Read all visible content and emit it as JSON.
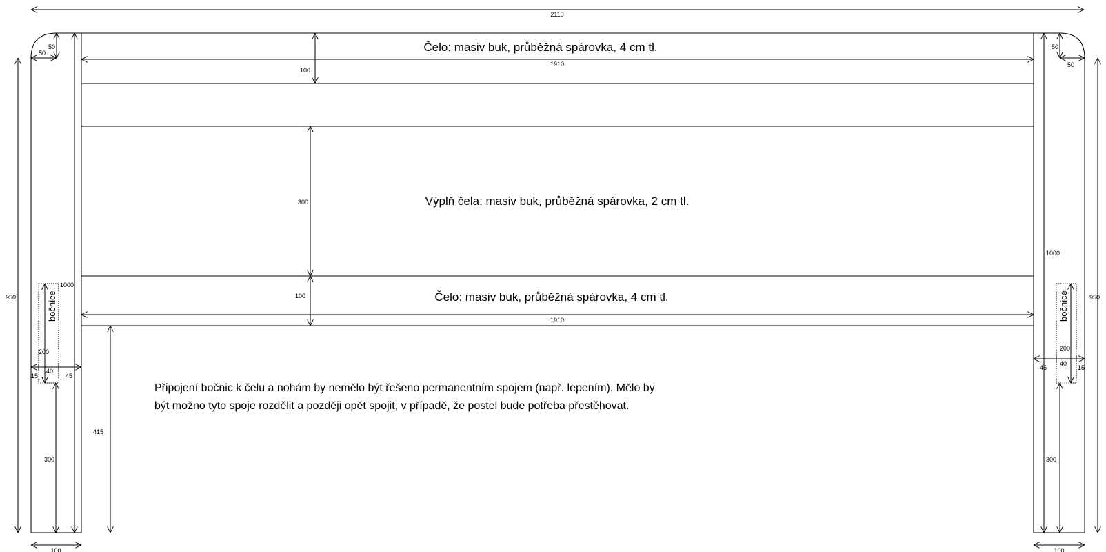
{
  "labels": {
    "top_rail": "Čelo: masiv buk, průběžná spárovka, 4 cm tl.",
    "infill": "Výplň čela: masiv buk, průběžná spárovka, 2 cm tl.",
    "bottom_rail": "Čelo: masiv buk, průběžná spárovka, 4 cm tl.",
    "left_side_rail": "bočnice",
    "right_side_rail": "bočnice"
  },
  "note": {
    "line1": "Připojení bočnic k čelu a nohám by nemělo být řešeno permanentním spojem (např. lepením). Mělo by",
    "line2": "být možno tyto spoje rozdělit a později opět spojit, v případě, že postel bude potřeba přestěhovat."
  },
  "dimensions": {
    "overall_width": "2110",
    "top_rail_width": "1910",
    "bottom_rail_width": "1910",
    "top_rail_height": "100",
    "infill_height": "300",
    "bottom_rail_height": "100",
    "rail_clearance": "415",
    "left": {
      "corner_radius_v": "50",
      "corner_radius_h": "50",
      "post_height": "950",
      "headboard_height": "1000",
      "side_rail_height": "200",
      "offset_15": "15",
      "offset_40": "40",
      "offset_45": "45",
      "floor_clearance": "300",
      "post_width": "100"
    },
    "right": {
      "corner_radius_v": "50",
      "corner_radius_h": "50",
      "post_height": "950",
      "headboard_height": "1000",
      "side_rail_height": "200",
      "offset_15": "15",
      "offset_40": "40",
      "offset_45": "45",
      "floor_clearance": "300",
      "post_width": "100"
    }
  }
}
